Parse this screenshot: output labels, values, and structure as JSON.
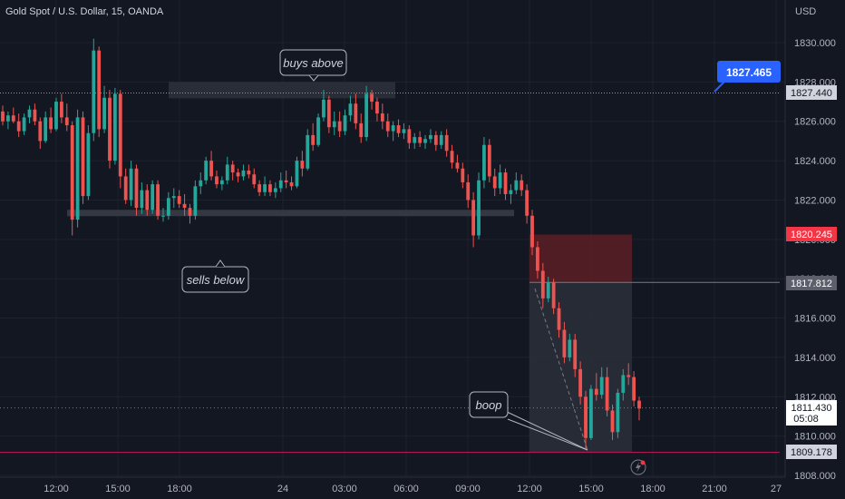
{
  "header": {
    "title": "Gold Spot / U.S. Dollar, 15, OANDA"
  },
  "axis": {
    "currency": "USD"
  },
  "colors": {
    "bg": "#131722",
    "up": "#26a69a",
    "down": "#ef5350",
    "grid": "#1e222d",
    "axis_text": "#b2b5be",
    "blue": "#2962ff",
    "red_tag": "#f23645",
    "gray_tag": "#5d606b"
  },
  "price_labels": {
    "top_line": "1827.440",
    "callout": "1827.465",
    "stop": "1820.245",
    "entry": "1817.812",
    "current": "1811.430",
    "countdown": "05:08",
    "bottom_line": "1809.178"
  },
  "annotations": [
    {
      "id": "buys-above",
      "text": "buys above"
    },
    {
      "id": "sells-below",
      "text": "sells below"
    },
    {
      "id": "boop",
      "text": "boop"
    }
  ],
  "chart_data": {
    "type": "candlestick",
    "title": "Gold Spot / U.S. Dollar, 15, OANDA",
    "ylabel": "USD",
    "ylim": [
      1807.6,
      1831.7
    ],
    "y_ticks": [
      "1830.000",
      "1828.000",
      "1826.000",
      "1824.000",
      "1822.000",
      "1820.000",
      "1818.000",
      "1816.000",
      "1814.000",
      "1812.000",
      "1810.000",
      "1808.000"
    ],
    "x_ticks": [
      "12:00",
      "15:00",
      "18:00",
      "24",
      "03:00",
      "06:00",
      "09:00",
      "12:00",
      "15:00",
      "18:00",
      "21:00",
      "27"
    ],
    "levels": {
      "buys_above_zone": [
        1827.4,
        1828.0
      ],
      "sells_below_zone": [
        1821.2,
        1821.5
      ],
      "horizontal_line_top": 1827.44,
      "horizontal_line_bottom": 1809.178,
      "short_position": {
        "entry": 1817.812,
        "stop": 1820.245,
        "target": 1809.178
      }
    },
    "candles": [
      [
        1826.5,
        1826.8,
        1825.8,
        1826.0
      ],
      [
        1826.0,
        1826.5,
        1825.6,
        1826.3
      ],
      [
        1826.3,
        1826.7,
        1825.9,
        1826.0
      ],
      [
        1826.0,
        1826.4,
        1825.2,
        1825.5
      ],
      [
        1825.5,
        1826.4,
        1825.3,
        1826.2
      ],
      [
        1826.2,
        1826.8,
        1825.9,
        1826.6
      ],
      [
        1826.6,
        1826.9,
        1825.8,
        1826.0
      ],
      [
        1826.0,
        1826.2,
        1824.6,
        1825.0
      ],
      [
        1825.0,
        1826.5,
        1824.9,
        1826.2
      ],
      [
        1826.2,
        1826.7,
        1825.4,
        1825.6
      ],
      [
        1825.6,
        1827.2,
        1825.5,
        1827.0
      ],
      [
        1827.0,
        1827.4,
        1825.9,
        1826.2
      ],
      [
        1826.2,
        1826.9,
        1825.5,
        1825.8
      ],
      [
        1825.8,
        1826.0,
        1820.2,
        1821.0
      ],
      [
        1821.0,
        1826.6,
        1820.6,
        1826.2
      ],
      [
        1826.2,
        1826.5,
        1821.8,
        1822.2
      ],
      [
        1822.2,
        1825.8,
        1822.0,
        1825.4
      ],
      [
        1825.4,
        1830.2,
        1825.0,
        1829.6
      ],
      [
        1829.6,
        1829.8,
        1825.2,
        1825.6
      ],
      [
        1825.6,
        1827.8,
        1825.4,
        1827.2
      ],
      [
        1827.2,
        1827.6,
        1823.6,
        1824.0
      ],
      [
        1824.0,
        1827.7,
        1823.8,
        1827.4
      ],
      [
        1827.4,
        1827.6,
        1822.6,
        1823.2
      ],
      [
        1823.2,
        1823.6,
        1821.8,
        1822.0
      ],
      [
        1822.0,
        1824.0,
        1821.7,
        1823.6
      ],
      [
        1823.6,
        1823.8,
        1821.2,
        1821.6
      ],
      [
        1821.6,
        1822.9,
        1821.3,
        1822.5
      ],
      [
        1822.5,
        1822.8,
        1821.2,
        1821.5
      ],
      [
        1821.5,
        1823.0,
        1821.3,
        1822.8
      ],
      [
        1822.8,
        1823.0,
        1821.0,
        1821.2
      ],
      [
        1821.2,
        1821.6,
        1820.9,
        1821.2
      ],
      [
        1821.2,
        1822.4,
        1821.0,
        1822.1
      ],
      [
        1822.1,
        1822.6,
        1821.6,
        1822.2
      ],
      [
        1822.2,
        1822.5,
        1821.6,
        1821.8
      ],
      [
        1821.8,
        1822.3,
        1821.2,
        1821.6
      ],
      [
        1821.6,
        1821.8,
        1820.8,
        1821.2
      ],
      [
        1821.2,
        1823.0,
        1821.0,
        1822.7
      ],
      [
        1822.7,
        1823.4,
        1822.3,
        1823.0
      ],
      [
        1823.0,
        1824.2,
        1822.8,
        1824.0
      ],
      [
        1824.0,
        1824.5,
        1823.0,
        1823.2
      ],
      [
        1823.2,
        1823.5,
        1822.6,
        1822.8
      ],
      [
        1822.8,
        1823.2,
        1822.5,
        1823.0
      ],
      [
        1823.0,
        1824.2,
        1822.8,
        1823.8
      ],
      [
        1823.8,
        1824.0,
        1823.0,
        1823.4
      ],
      [
        1823.4,
        1823.6,
        1822.9,
        1823.2
      ],
      [
        1823.2,
        1823.8,
        1823.0,
        1823.5
      ],
      [
        1823.5,
        1823.8,
        1823.1,
        1823.3
      ],
      [
        1823.3,
        1823.6,
        1822.6,
        1822.8
      ],
      [
        1822.8,
        1823.0,
        1822.2,
        1822.4
      ],
      [
        1822.4,
        1823.2,
        1822.2,
        1822.8
      ],
      [
        1822.8,
        1823.0,
        1822.2,
        1822.4
      ],
      [
        1822.4,
        1822.9,
        1822.1,
        1822.6
      ],
      [
        1822.6,
        1823.4,
        1822.4,
        1823.0
      ],
      [
        1823.0,
        1823.5,
        1822.6,
        1822.9
      ],
      [
        1822.9,
        1823.2,
        1822.5,
        1822.7
      ],
      [
        1822.7,
        1824.2,
        1822.6,
        1824.0
      ],
      [
        1824.0,
        1824.5,
        1823.2,
        1823.6
      ],
      [
        1823.6,
        1825.6,
        1823.5,
        1825.3
      ],
      [
        1825.3,
        1825.9,
        1824.5,
        1824.8
      ],
      [
        1824.8,
        1826.4,
        1824.7,
        1826.2
      ],
      [
        1826.2,
        1827.6,
        1826.0,
        1827.1
      ],
      [
        1827.1,
        1827.3,
        1825.4,
        1825.7
      ],
      [
        1825.7,
        1826.5,
        1825.3,
        1826.0
      ],
      [
        1826.0,
        1826.5,
        1825.2,
        1825.5
      ],
      [
        1825.5,
        1826.6,
        1825.3,
        1826.3
      ],
      [
        1826.3,
        1827.3,
        1826.0,
        1826.9
      ],
      [
        1826.9,
        1827.4,
        1825.6,
        1825.9
      ],
      [
        1825.9,
        1826.4,
        1824.9,
        1825.2
      ],
      [
        1825.2,
        1827.8,
        1825.0,
        1827.4
      ],
      [
        1827.4,
        1827.6,
        1826.6,
        1827.0
      ],
      [
        1827.0,
        1827.2,
        1826.0,
        1826.4
      ],
      [
        1826.4,
        1826.9,
        1825.6,
        1826.0
      ],
      [
        1826.0,
        1826.4,
        1825.2,
        1825.5
      ],
      [
        1825.5,
        1826.0,
        1825.0,
        1825.8
      ],
      [
        1825.8,
        1826.1,
        1825.2,
        1825.4
      ],
      [
        1825.4,
        1825.9,
        1825.1,
        1825.6
      ],
      [
        1825.6,
        1825.8,
        1824.6,
        1824.9
      ],
      [
        1824.9,
        1825.4,
        1824.6,
        1825.2
      ],
      [
        1825.2,
        1825.5,
        1824.7,
        1824.9
      ],
      [
        1824.9,
        1825.3,
        1824.6,
        1825.1
      ],
      [
        1825.1,
        1825.6,
        1824.9,
        1825.3
      ],
      [
        1825.3,
        1825.5,
        1824.5,
        1824.8
      ],
      [
        1824.8,
        1825.5,
        1824.6,
        1825.3
      ],
      [
        1825.3,
        1825.6,
        1824.2,
        1824.5
      ],
      [
        1824.5,
        1824.8,
        1823.6,
        1823.9
      ],
      [
        1823.9,
        1824.3,
        1823.4,
        1823.6
      ],
      [
        1823.6,
        1823.9,
        1822.6,
        1822.9
      ],
      [
        1822.9,
        1823.3,
        1821.6,
        1822.0
      ],
      [
        1822.0,
        1822.4,
        1819.6,
        1820.2
      ],
      [
        1820.2,
        1823.4,
        1820.0,
        1823.0
      ],
      [
        1823.0,
        1825.2,
        1822.6,
        1824.8
      ],
      [
        1824.8,
        1825.1,
        1822.9,
        1823.2
      ],
      [
        1823.2,
        1823.6,
        1822.2,
        1822.6
      ],
      [
        1822.6,
        1823.8,
        1822.3,
        1823.4
      ],
      [
        1823.4,
        1823.6,
        1822.0,
        1822.3
      ],
      [
        1822.3,
        1822.8,
        1821.8,
        1822.5
      ],
      [
        1822.5,
        1823.4,
        1822.3,
        1823.0
      ],
      [
        1823.0,
        1823.3,
        1822.2,
        1822.5
      ],
      [
        1822.5,
        1822.8,
        1820.8,
        1821.2
      ],
      [
        1821.2,
        1821.5,
        1819.2,
        1819.6
      ],
      [
        1819.6,
        1819.9,
        1818.0,
        1818.4
      ],
      [
        1818.4,
        1818.8,
        1816.5,
        1817.0
      ],
      [
        1817.0,
        1818.1,
        1816.8,
        1817.8
      ],
      [
        1817.8,
        1818.0,
        1816.2,
        1816.5
      ],
      [
        1816.5,
        1816.8,
        1815.0,
        1815.4
      ],
      [
        1815.4,
        1815.8,
        1813.7,
        1814.0
      ],
      [
        1814.0,
        1815.2,
        1813.8,
        1814.9
      ],
      [
        1814.9,
        1815.2,
        1813.0,
        1813.4
      ],
      [
        1813.4,
        1813.8,
        1811.6,
        1812.0
      ],
      [
        1812.0,
        1812.3,
        1809.3,
        1809.9
      ],
      [
        1809.9,
        1812.6,
        1809.8,
        1812.4
      ],
      [
        1812.4,
        1813.2,
        1811.8,
        1812.1
      ],
      [
        1812.1,
        1813.5,
        1811.9,
        1813.0
      ],
      [
        1813.0,
        1813.5,
        1811.0,
        1811.3
      ],
      [
        1811.3,
        1811.6,
        1809.8,
        1810.2
      ],
      [
        1810.2,
        1812.4,
        1809.9,
        1812.2
      ],
      [
        1812.2,
        1813.4,
        1811.8,
        1813.1
      ],
      [
        1813.1,
        1813.7,
        1812.6,
        1813.0
      ],
      [
        1813.0,
        1813.3,
        1811.5,
        1811.8
      ],
      [
        1811.8,
        1812.0,
        1810.8,
        1811.4
      ]
    ]
  }
}
